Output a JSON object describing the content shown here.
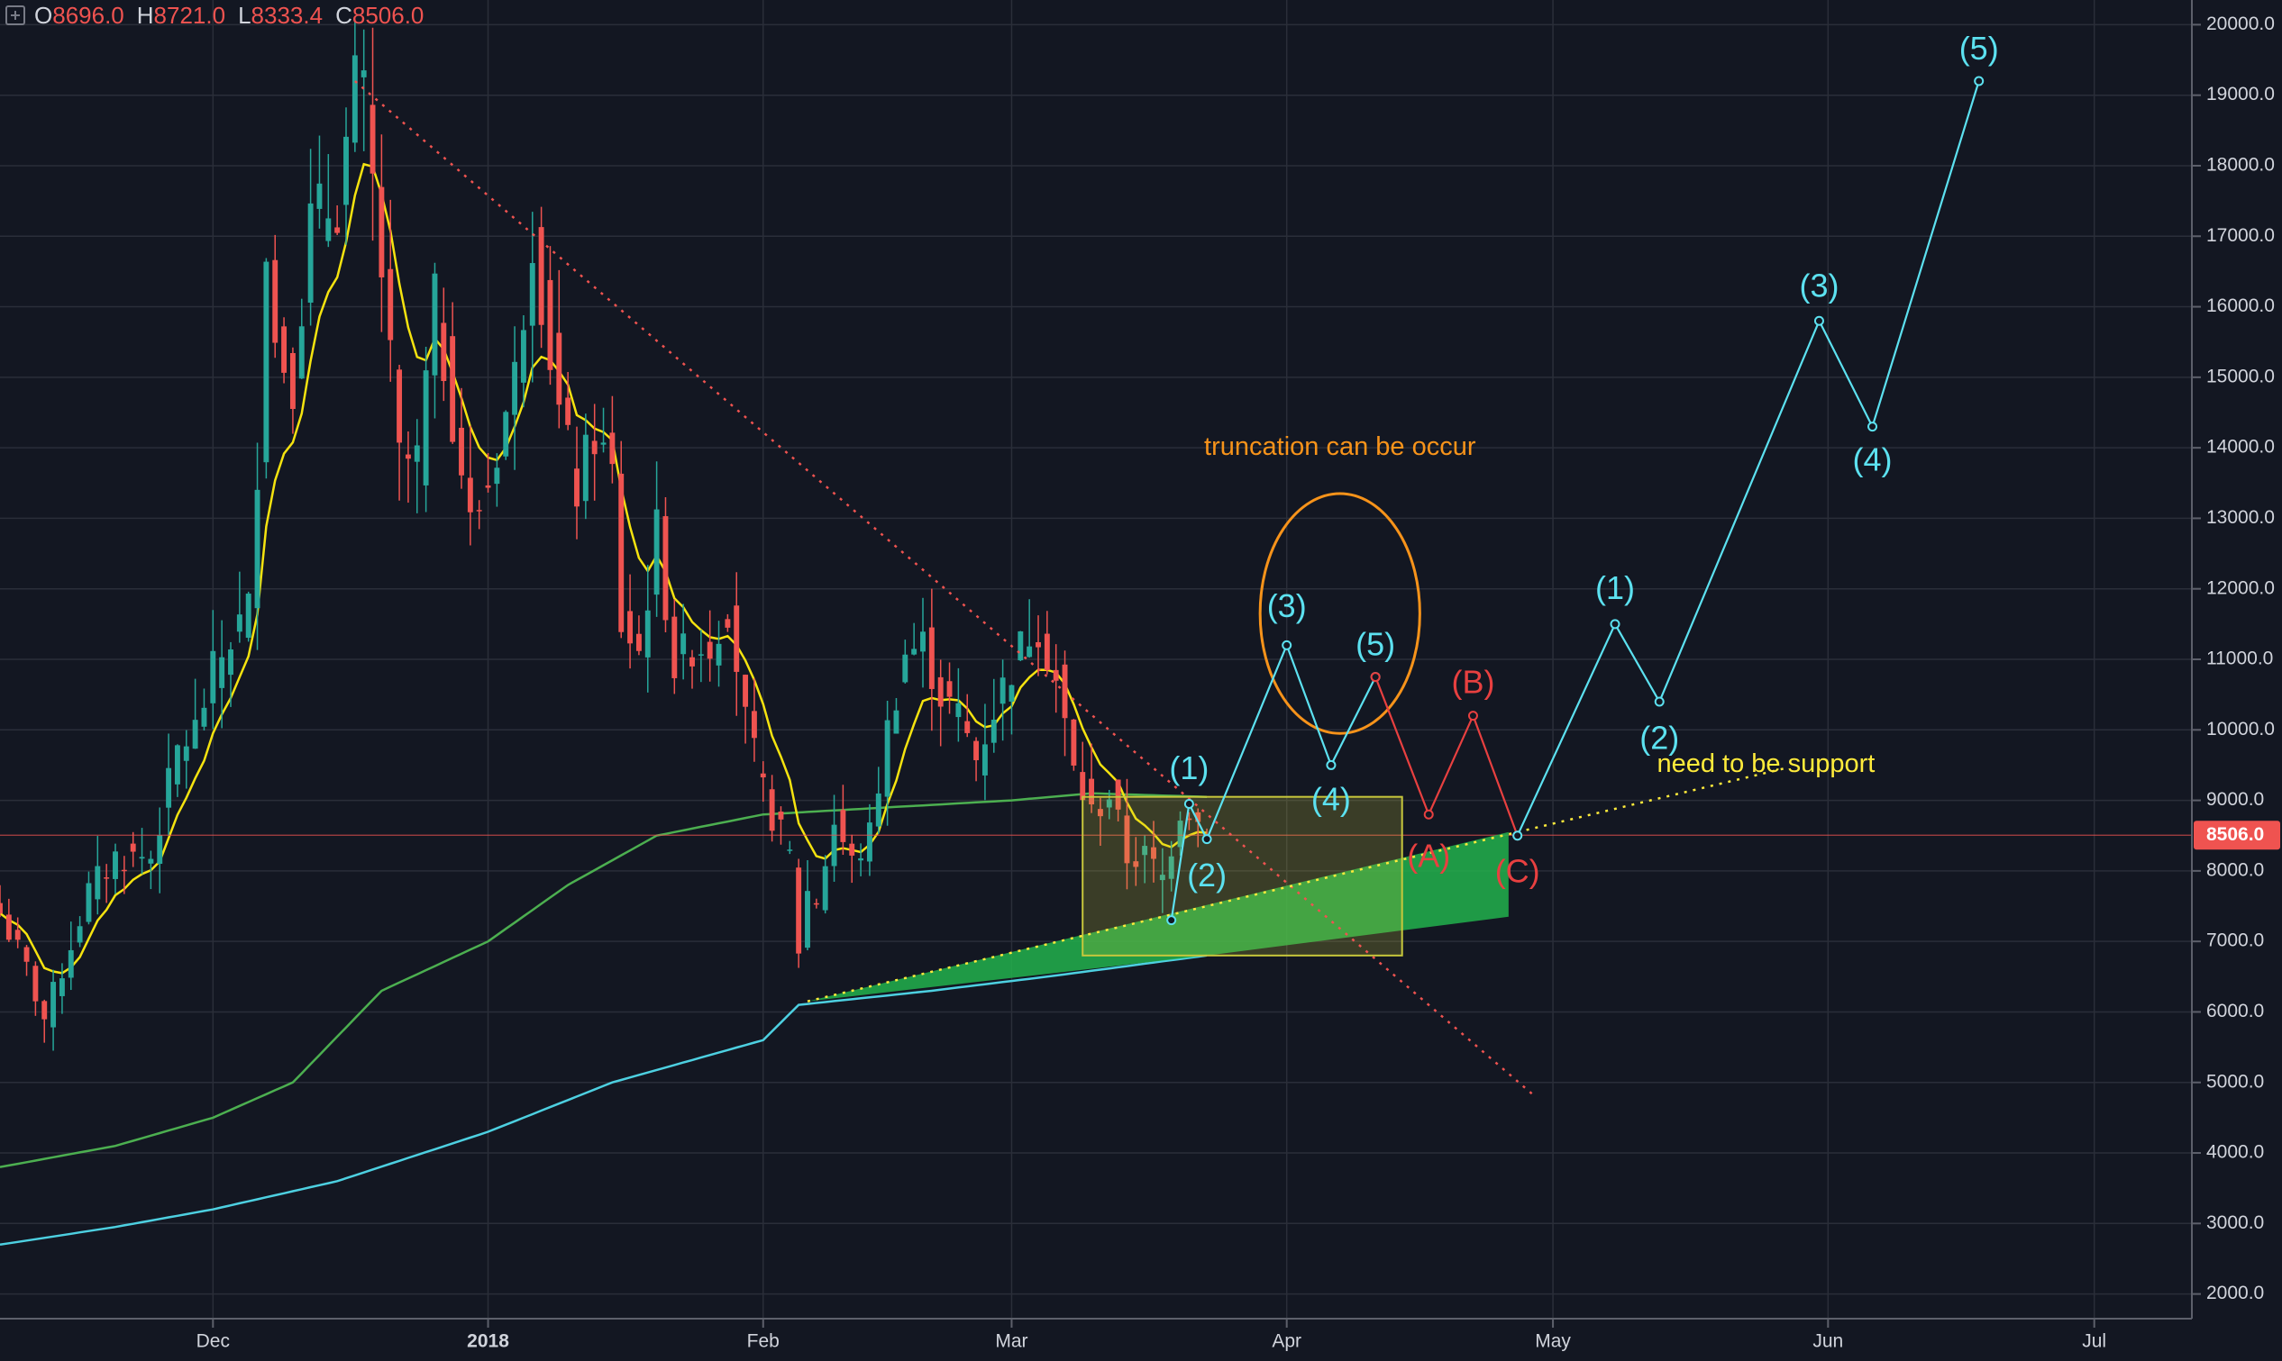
{
  "header": {
    "ohlc": [
      {
        "key": "O",
        "value": "8696.0"
      },
      {
        "key": "H",
        "value": "8721.0"
      },
      {
        "key": "L",
        "value": "8333.4"
      },
      {
        "key": "C",
        "value": "8506.0"
      }
    ]
  },
  "colors": {
    "background": "#131722",
    "grid": "#2a2e39",
    "up": "#26a69a",
    "down": "#ef5350",
    "ma_fast": "#f5e30f",
    "ma_mid": "#4caf50",
    "ma_slow": "#4dd0e1",
    "wave_impulse": "#5ce1f0",
    "wave_corrective": "#e84040",
    "annotation_orange": "#f7931a",
    "annotation_yellow": "#ffeb3b",
    "support_fill": "#22b14c"
  },
  "chart_data": {
    "type": "candlestick",
    "symbol_price_label": "8506.0",
    "ylim": [
      1650,
      20350
    ],
    "yticks": [
      "2000.0",
      "3000.0",
      "4000.0",
      "5000.0",
      "6000.0",
      "7000.0",
      "8000.0",
      "9000.0",
      "10000.0",
      "11000.0",
      "12000.0",
      "13000.0",
      "14000.0",
      "15000.0",
      "16000.0",
      "17000.0",
      "18000.0",
      "19000.0",
      "20000.0"
    ],
    "xaxis": {
      "start": "2017-11-07",
      "end": "2018-07-12",
      "ticks": [
        {
          "date": "2017-12-01",
          "label": "Dec"
        },
        {
          "date": "2018-01-01",
          "label": "2018"
        },
        {
          "date": "2018-02-01",
          "label": "Feb"
        },
        {
          "date": "2018-03-01",
          "label": "Mar"
        },
        {
          "date": "2018-04-01",
          "label": "Apr"
        },
        {
          "date": "2018-05-01",
          "label": "May"
        },
        {
          "date": "2018-06-01",
          "label": "Jun"
        },
        {
          "date": "2018-07-01",
          "label": "Jul"
        }
      ]
    },
    "close_keypoints": [
      [
        "2017-11-07",
        7400
      ],
      [
        "2017-11-10",
        6600
      ],
      [
        "2017-11-12",
        5900
      ],
      [
        "2017-11-14",
        6600
      ],
      [
        "2017-11-17",
        7700
      ],
      [
        "2017-11-20",
        8200
      ],
      [
        "2017-11-24",
        8200
      ],
      [
        "2017-11-27",
        9700
      ],
      [
        "2017-11-29",
        10000
      ],
      [
        "2017-12-01",
        10800
      ],
      [
        "2017-12-03",
        11300
      ],
      [
        "2017-12-05",
        11700
      ],
      [
        "2017-12-06",
        13800
      ],
      [
        "2017-12-07",
        17000
      ],
      [
        "2017-12-08",
        15500
      ],
      [
        "2017-12-10",
        15000
      ],
      [
        "2017-12-12",
        17200
      ],
      [
        "2017-12-15",
        17500
      ],
      [
        "2017-12-17",
        19100
      ],
      [
        "2017-12-18",
        18900
      ],
      [
        "2017-12-20",
        16500
      ],
      [
        "2017-12-22",
        13800
      ],
      [
        "2017-12-24",
        13800
      ],
      [
        "2017-12-26",
        16000
      ],
      [
        "2017-12-28",
        14500
      ],
      [
        "2017-12-30",
        12900
      ],
      [
        "2018-01-01",
        13500
      ],
      [
        "2018-01-04",
        15000
      ],
      [
        "2018-01-06",
        17100
      ],
      [
        "2018-01-07",
        16200
      ],
      [
        "2018-01-09",
        14500
      ],
      [
        "2018-01-11",
        13400
      ],
      [
        "2018-01-13",
        14200
      ],
      [
        "2018-01-15",
        13600
      ],
      [
        "2018-01-16",
        11500
      ],
      [
        "2018-01-18",
        11100
      ],
      [
        "2018-01-20",
        12800
      ],
      [
        "2018-01-22",
        10900
      ],
      [
        "2018-01-24",
        11200
      ],
      [
        "2018-01-26",
        11200
      ],
      [
        "2018-01-28",
        11800
      ],
      [
        "2018-01-30",
        10100
      ],
      [
        "2018-02-01",
        9100
      ],
      [
        "2018-02-02",
        8800
      ],
      [
        "2018-02-04",
        8200
      ],
      [
        "2018-02-05",
        6900
      ],
      [
        "2018-02-06",
        7700
      ],
      [
        "2018-02-07",
        7600
      ],
      [
        "2018-02-09",
        8700
      ],
      [
        "2018-02-11",
        8100
      ],
      [
        "2018-02-13",
        8500
      ],
      [
        "2018-02-15",
        10000
      ],
      [
        "2018-02-17",
        11100
      ],
      [
        "2018-02-19",
        11200
      ],
      [
        "2018-02-21",
        10500
      ],
      [
        "2018-02-23",
        10200
      ],
      [
        "2018-02-25",
        9600
      ],
      [
        "2018-02-27",
        10300
      ],
      [
        "2018-03-01",
        10900
      ],
      [
        "2018-03-03",
        11400
      ],
      [
        "2018-03-04",
        11500
      ],
      [
        "2018-03-06",
        10700
      ],
      [
        "2018-03-08",
        9400
      ],
      [
        "2018-03-10",
        8800
      ],
      [
        "2018-03-12",
        9100
      ],
      [
        "2018-03-14",
        8200
      ],
      [
        "2018-03-16",
        8200
      ],
      [
        "2018-03-18",
        7900
      ],
      [
        "2018-03-20",
        8900
      ],
      [
        "2018-03-21",
        8900
      ],
      [
        "2018-03-22",
        8700
      ],
      [
        "2018-03-23",
        8506
      ]
    ],
    "ma200_keypoints": [
      [
        "2017-11-07",
        2700
      ],
      [
        "2017-11-20",
        2950
      ],
      [
        "2017-12-01",
        3200
      ],
      [
        "2017-12-15",
        3600
      ],
      [
        "2018-01-01",
        4300
      ],
      [
        "2018-01-15",
        5000
      ],
      [
        "2018-02-01",
        5600
      ],
      [
        "2018-02-05",
        6100
      ],
      [
        "2018-02-20",
        6300
      ],
      [
        "2018-03-05",
        6500
      ],
      [
        "2018-03-23",
        6800
      ]
    ],
    "ma100_keypoints": [
      [
        "2017-11-07",
        3800
      ],
      [
        "2017-11-20",
        4100
      ],
      [
        "2017-12-01",
        4500
      ],
      [
        "2017-12-10",
        5000
      ],
      [
        "2017-12-20",
        6300
      ],
      [
        "2018-01-01",
        7000
      ],
      [
        "2018-01-10",
        7800
      ],
      [
        "2018-01-20",
        8500
      ],
      [
        "2018-02-01",
        8800
      ],
      [
        "2018-02-15",
        8900
      ],
      [
        "2018-03-01",
        9000
      ],
      [
        "2018-03-10",
        9100
      ],
      [
        "2018-03-23",
        9050
      ]
    ],
    "price_line": 8506,
    "resistance_line": {
      "from": [
        "2017-12-17",
        19200
      ],
      "to": [
        "2018-04-29",
        4800
      ]
    },
    "support_line": {
      "from": [
        "2018-02-06",
        6150
      ],
      "to": [
        "2018-05-27",
        9450
      ]
    },
    "support_band": [
      [
        "2018-02-06",
        6150
      ],
      [
        "2018-04-26",
        8550
      ],
      [
        "2018-04-26",
        7350
      ],
      [
        "2018-03-23",
        6800
      ]
    ],
    "box": {
      "from": [
        "2018-03-09",
        9050
      ],
      "to": [
        "2018-04-14",
        6800
      ]
    },
    "ellipse": {
      "center": [
        "2018-04-07",
        11650
      ],
      "rx_days": 9,
      "ry_price": 1700
    },
    "wave_impulse_1": [
      [
        "2018-03-19",
        7300
      ],
      [
        "2018-03-21",
        8950
      ],
      [
        "2018-03-23",
        8450
      ],
      [
        "2018-04-01",
        11200
      ],
      [
        "2018-04-06",
        9500
      ],
      [
        "2018-04-11",
        10750
      ]
    ],
    "wave_corrective": [
      [
        "2018-04-11",
        10750
      ],
      [
        "2018-04-17",
        8800
      ],
      [
        "2018-04-22",
        10200
      ],
      [
        "2018-04-27",
        8500
      ]
    ],
    "wave_impulse_2": [
      [
        "2018-04-27",
        8500
      ],
      [
        "2018-05-08",
        11500
      ],
      [
        "2018-05-13",
        10400
      ],
      [
        "2018-05-31",
        15800
      ],
      [
        "2018-06-06",
        14300
      ],
      [
        "2018-06-18",
        19200
      ]
    ],
    "wave_labels": [
      {
        "text": "(1)",
        "date": "2018-03-21",
        "price": 9420,
        "kind": "impulse"
      },
      {
        "text": "(2)",
        "date": "2018-03-23",
        "price": 7900,
        "kind": "impulse"
      },
      {
        "text": "(3)",
        "date": "2018-04-01",
        "price": 11720,
        "kind": "impulse"
      },
      {
        "text": "(4)",
        "date": "2018-04-06",
        "price": 8980,
        "kind": "impulse"
      },
      {
        "text": "(5)",
        "date": "2018-04-11",
        "price": 11180,
        "kind": "impulse"
      },
      {
        "text": "(A)",
        "date": "2018-04-17",
        "price": 8180,
        "kind": "corrective"
      },
      {
        "text": "(B)",
        "date": "2018-04-22",
        "price": 10640,
        "kind": "corrective"
      },
      {
        "text": "(C)",
        "date": "2018-04-27",
        "price": 7960,
        "kind": "corrective"
      },
      {
        "text": "(1)",
        "date": "2018-05-08",
        "price": 11980,
        "kind": "impulse"
      },
      {
        "text": "(2)",
        "date": "2018-05-13",
        "price": 9850,
        "kind": "impulse"
      },
      {
        "text": "(3)",
        "date": "2018-05-31",
        "price": 16260,
        "kind": "impulse"
      },
      {
        "text": "(4)",
        "date": "2018-06-06",
        "price": 13800,
        "kind": "impulse"
      },
      {
        "text": "(5)",
        "date": "2018-06-18",
        "price": 19630,
        "kind": "impulse"
      }
    ],
    "annotations": [
      {
        "text": "truncation can be occur",
        "date": "2018-04-07",
        "price": 14000,
        "kind": "orange"
      },
      {
        "text": "need to be support",
        "date": "2018-05-25",
        "price": 9500,
        "kind": "yellow"
      }
    ]
  }
}
